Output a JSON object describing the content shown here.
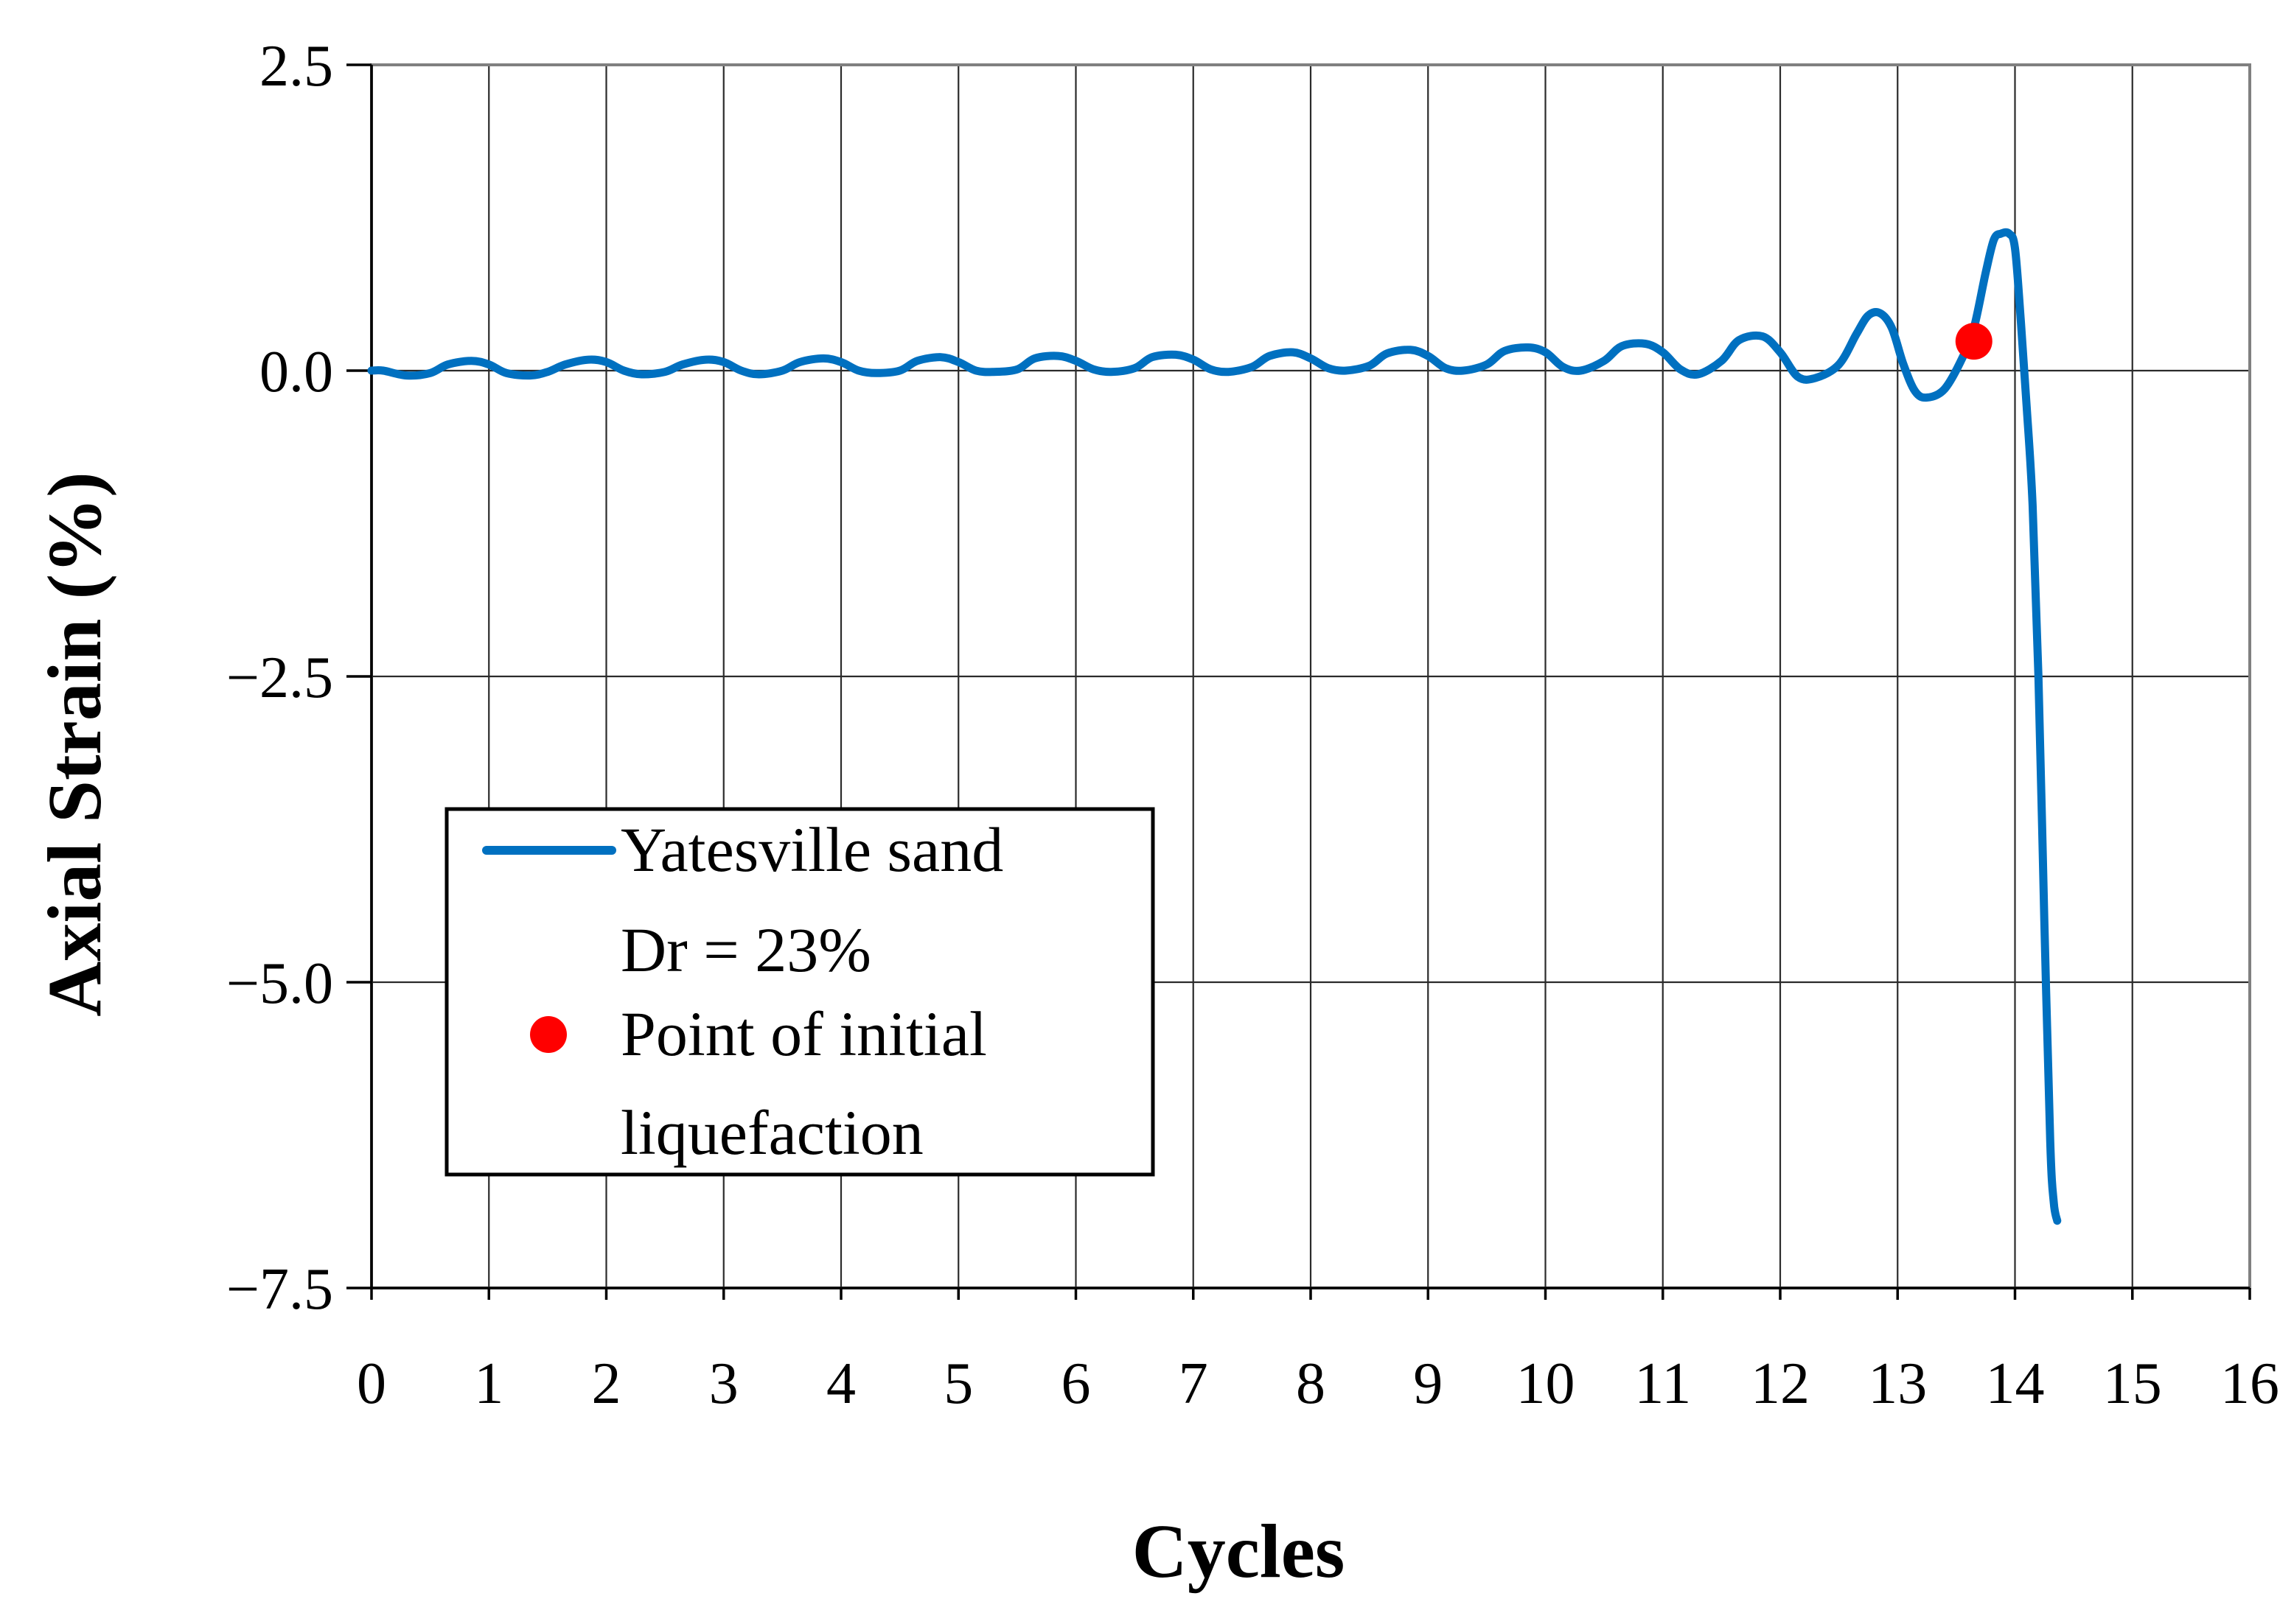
{
  "chart_data": {
    "type": "line",
    "title": "",
    "xlabel": "Cycles",
    "ylabel": "Axial Strain (%)",
    "xlim": [
      0,
      16
    ],
    "ylim": [
      -7.5,
      2.5
    ],
    "x_ticks": [
      0,
      1,
      2,
      3,
      4,
      5,
      6,
      7,
      8,
      9,
      10,
      11,
      12,
      13,
      14,
      15,
      16
    ],
    "x_tick_labels": [
      "0",
      "1",
      "2",
      "3",
      "4",
      "5",
      "6",
      "7",
      "8",
      "9",
      "10",
      "11",
      "12",
      "13",
      "14",
      "15",
      "16"
    ],
    "y_ticks": [
      2.5,
      0,
      -2.5,
      -5,
      -7.5
    ],
    "y_tick_labels": [
      "2.5",
      "0.0",
      "−2.5",
      "−5.0",
      "−7.5"
    ],
    "grid": true,
    "legend_position": "lower-left",
    "series": [
      {
        "name": "Yatesville sand Dr = 23%",
        "legend_lines": [
          "Yatesville sand",
          "Dr = 23%"
        ],
        "color": "#0070c0",
        "x": [
          0,
          0.1,
          0.3,
          0.5,
          0.65,
          0.85,
          1.0,
          1.15,
          1.35,
          1.5,
          1.65,
          1.85,
          2.0,
          2.15,
          2.3,
          2.5,
          2.65,
          2.85,
          3.0,
          3.15,
          3.3,
          3.5,
          3.65,
          3.85,
          4.0,
          4.15,
          4.3,
          4.5,
          4.65,
          4.85,
          5.0,
          5.15,
          5.3,
          5.5,
          5.65,
          5.85,
          6.0,
          6.15,
          6.3,
          6.5,
          6.65,
          6.85,
          7.0,
          7.15,
          7.3,
          7.5,
          7.65,
          7.85,
          8.0,
          8.15,
          8.3,
          8.5,
          8.65,
          8.85,
          9.0,
          9.15,
          9.3,
          9.5,
          9.65,
          9.85,
          10.0,
          10.15,
          10.3,
          10.5,
          10.65,
          10.85,
          11.0,
          11.15,
          11.3,
          11.5,
          11.65,
          11.85,
          12.0,
          12.15,
          12.3,
          12.5,
          12.65,
          12.75,
          12.85,
          12.95,
          13.05,
          13.15,
          13.25,
          13.4,
          13.55,
          13.65,
          13.75,
          13.82,
          13.88,
          13.95,
          14.0,
          14.05,
          14.1,
          14.15,
          14.2,
          14.25,
          14.3,
          14.33,
          14.36
        ],
        "values": [
          0.0,
          0.0,
          -0.04,
          -0.02,
          0.05,
          0.08,
          0.05,
          -0.02,
          -0.04,
          -0.01,
          0.05,
          0.09,
          0.07,
          0.0,
          -0.03,
          -0.01,
          0.05,
          0.09,
          0.07,
          0.0,
          -0.03,
          0.0,
          0.07,
          0.1,
          0.07,
          0.0,
          -0.02,
          0.0,
          0.08,
          0.11,
          0.07,
          0.0,
          -0.01,
          0.01,
          0.1,
          0.12,
          0.08,
          0.01,
          -0.01,
          0.02,
          0.11,
          0.13,
          0.09,
          0.01,
          -0.01,
          0.03,
          0.12,
          0.15,
          0.1,
          0.02,
          0.0,
          0.04,
          0.14,
          0.17,
          0.12,
          0.02,
          0.0,
          0.05,
          0.16,
          0.19,
          0.15,
          0.03,
          0.0,
          0.08,
          0.2,
          0.22,
          0.15,
          0.01,
          -0.03,
          0.08,
          0.25,
          0.28,
          0.15,
          -0.05,
          -0.06,
          0.05,
          0.3,
          0.45,
          0.47,
          0.35,
          0.05,
          -0.17,
          -0.22,
          -0.15,
          0.1,
          0.35,
          0.8,
          1.07,
          1.12,
          1.12,
          1.0,
          0.4,
          -0.3,
          -1.1,
          -2.5,
          -4.5,
          -6.3,
          -6.8,
          -6.95
        ]
      },
      {
        "name": "Point of initial liquefaction",
        "legend_lines": [
          "Point of initial",
          "liquefaction"
        ],
        "color": "#ff0000",
        "type": "scatter",
        "x": [
          13.65
        ],
        "values": [
          0.24
        ]
      }
    ]
  }
}
